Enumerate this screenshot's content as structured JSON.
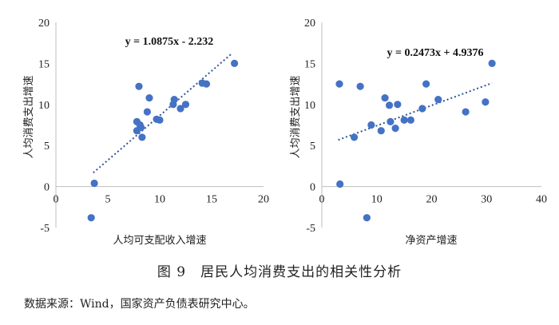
{
  "figure": {
    "caption": "图 9　居民人均消费支出的相关性分析",
    "source": "数据来源：Wind，国家资产负债表研究中心。"
  },
  "chart_data": [
    {
      "type": "scatter",
      "xlabel": "人均可支配收入增速",
      "ylabel": "人均消费支出增速",
      "equation": "y = 1.0875x - 2.232",
      "trendline": {
        "slope": 1.0875,
        "intercept": -2.232,
        "x_range": [
          3.6,
          17.0
        ]
      },
      "xlim": [
        0,
        20
      ],
      "ylim": [
        -5,
        20
      ],
      "xticks": [
        0,
        5,
        10,
        15,
        20
      ],
      "yticks": [
        -5,
        0,
        5,
        10,
        15,
        20
      ],
      "marker_color": "#4472C4",
      "points": [
        {
          "x": 3.4,
          "y": -3.8
        },
        {
          "x": 3.7,
          "y": 0.4
        },
        {
          "x": 7.8,
          "y": 7.9
        },
        {
          "x": 7.8,
          "y": 6.8
        },
        {
          "x": 8.0,
          "y": 12.2
        },
        {
          "x": 8.1,
          "y": 7.5
        },
        {
          "x": 8.2,
          "y": 7.2
        },
        {
          "x": 8.3,
          "y": 6.0
        },
        {
          "x": 8.8,
          "y": 9.1
        },
        {
          "x": 9.0,
          "y": 10.8
        },
        {
          "x": 9.7,
          "y": 8.2
        },
        {
          "x": 10.0,
          "y": 8.1
        },
        {
          "x": 11.3,
          "y": 10.0
        },
        {
          "x": 11.4,
          "y": 10.6
        },
        {
          "x": 12.0,
          "y": 9.5
        },
        {
          "x": 12.5,
          "y": 10.0
        },
        {
          "x": 14.1,
          "y": 12.6
        },
        {
          "x": 14.5,
          "y": 12.5
        },
        {
          "x": 17.2,
          "y": 15.0
        }
      ]
    },
    {
      "type": "scatter",
      "xlabel": "净资产增速",
      "ylabel": "人均消费支出增速",
      "equation": "y = 0.2473x + 4.9376",
      "trendline": {
        "slope": 0.2473,
        "intercept": 4.9376,
        "x_range": [
          3.0,
          31.0
        ]
      },
      "xlim": [
        0,
        40
      ],
      "ylim": [
        -5,
        20
      ],
      "xticks": [
        0,
        10,
        20,
        30,
        40
      ],
      "yticks": [
        -5,
        0,
        5,
        10,
        15,
        20
      ],
      "marker_color": "#4472C4",
      "points": [
        {
          "x": 3.2,
          "y": 12.5
        },
        {
          "x": 3.3,
          "y": 0.3
        },
        {
          "x": 5.9,
          "y": 6.0
        },
        {
          "x": 7.0,
          "y": 12.2
        },
        {
          "x": 8.2,
          "y": -3.8
        },
        {
          "x": 9.0,
          "y": 7.5
        },
        {
          "x": 10.8,
          "y": 6.8
        },
        {
          "x": 11.5,
          "y": 10.8
        },
        {
          "x": 12.3,
          "y": 9.9
        },
        {
          "x": 12.5,
          "y": 7.9
        },
        {
          "x": 13.4,
          "y": 7.1
        },
        {
          "x": 13.8,
          "y": 10.0
        },
        {
          "x": 15.0,
          "y": 8.1
        },
        {
          "x": 16.2,
          "y": 8.1
        },
        {
          "x": 18.3,
          "y": 9.5
        },
        {
          "x": 19.0,
          "y": 12.5
        },
        {
          "x": 21.2,
          "y": 10.6
        },
        {
          "x": 26.2,
          "y": 9.1
        },
        {
          "x": 29.8,
          "y": 10.3
        },
        {
          "x": 31.0,
          "y": 15.0
        }
      ]
    }
  ]
}
